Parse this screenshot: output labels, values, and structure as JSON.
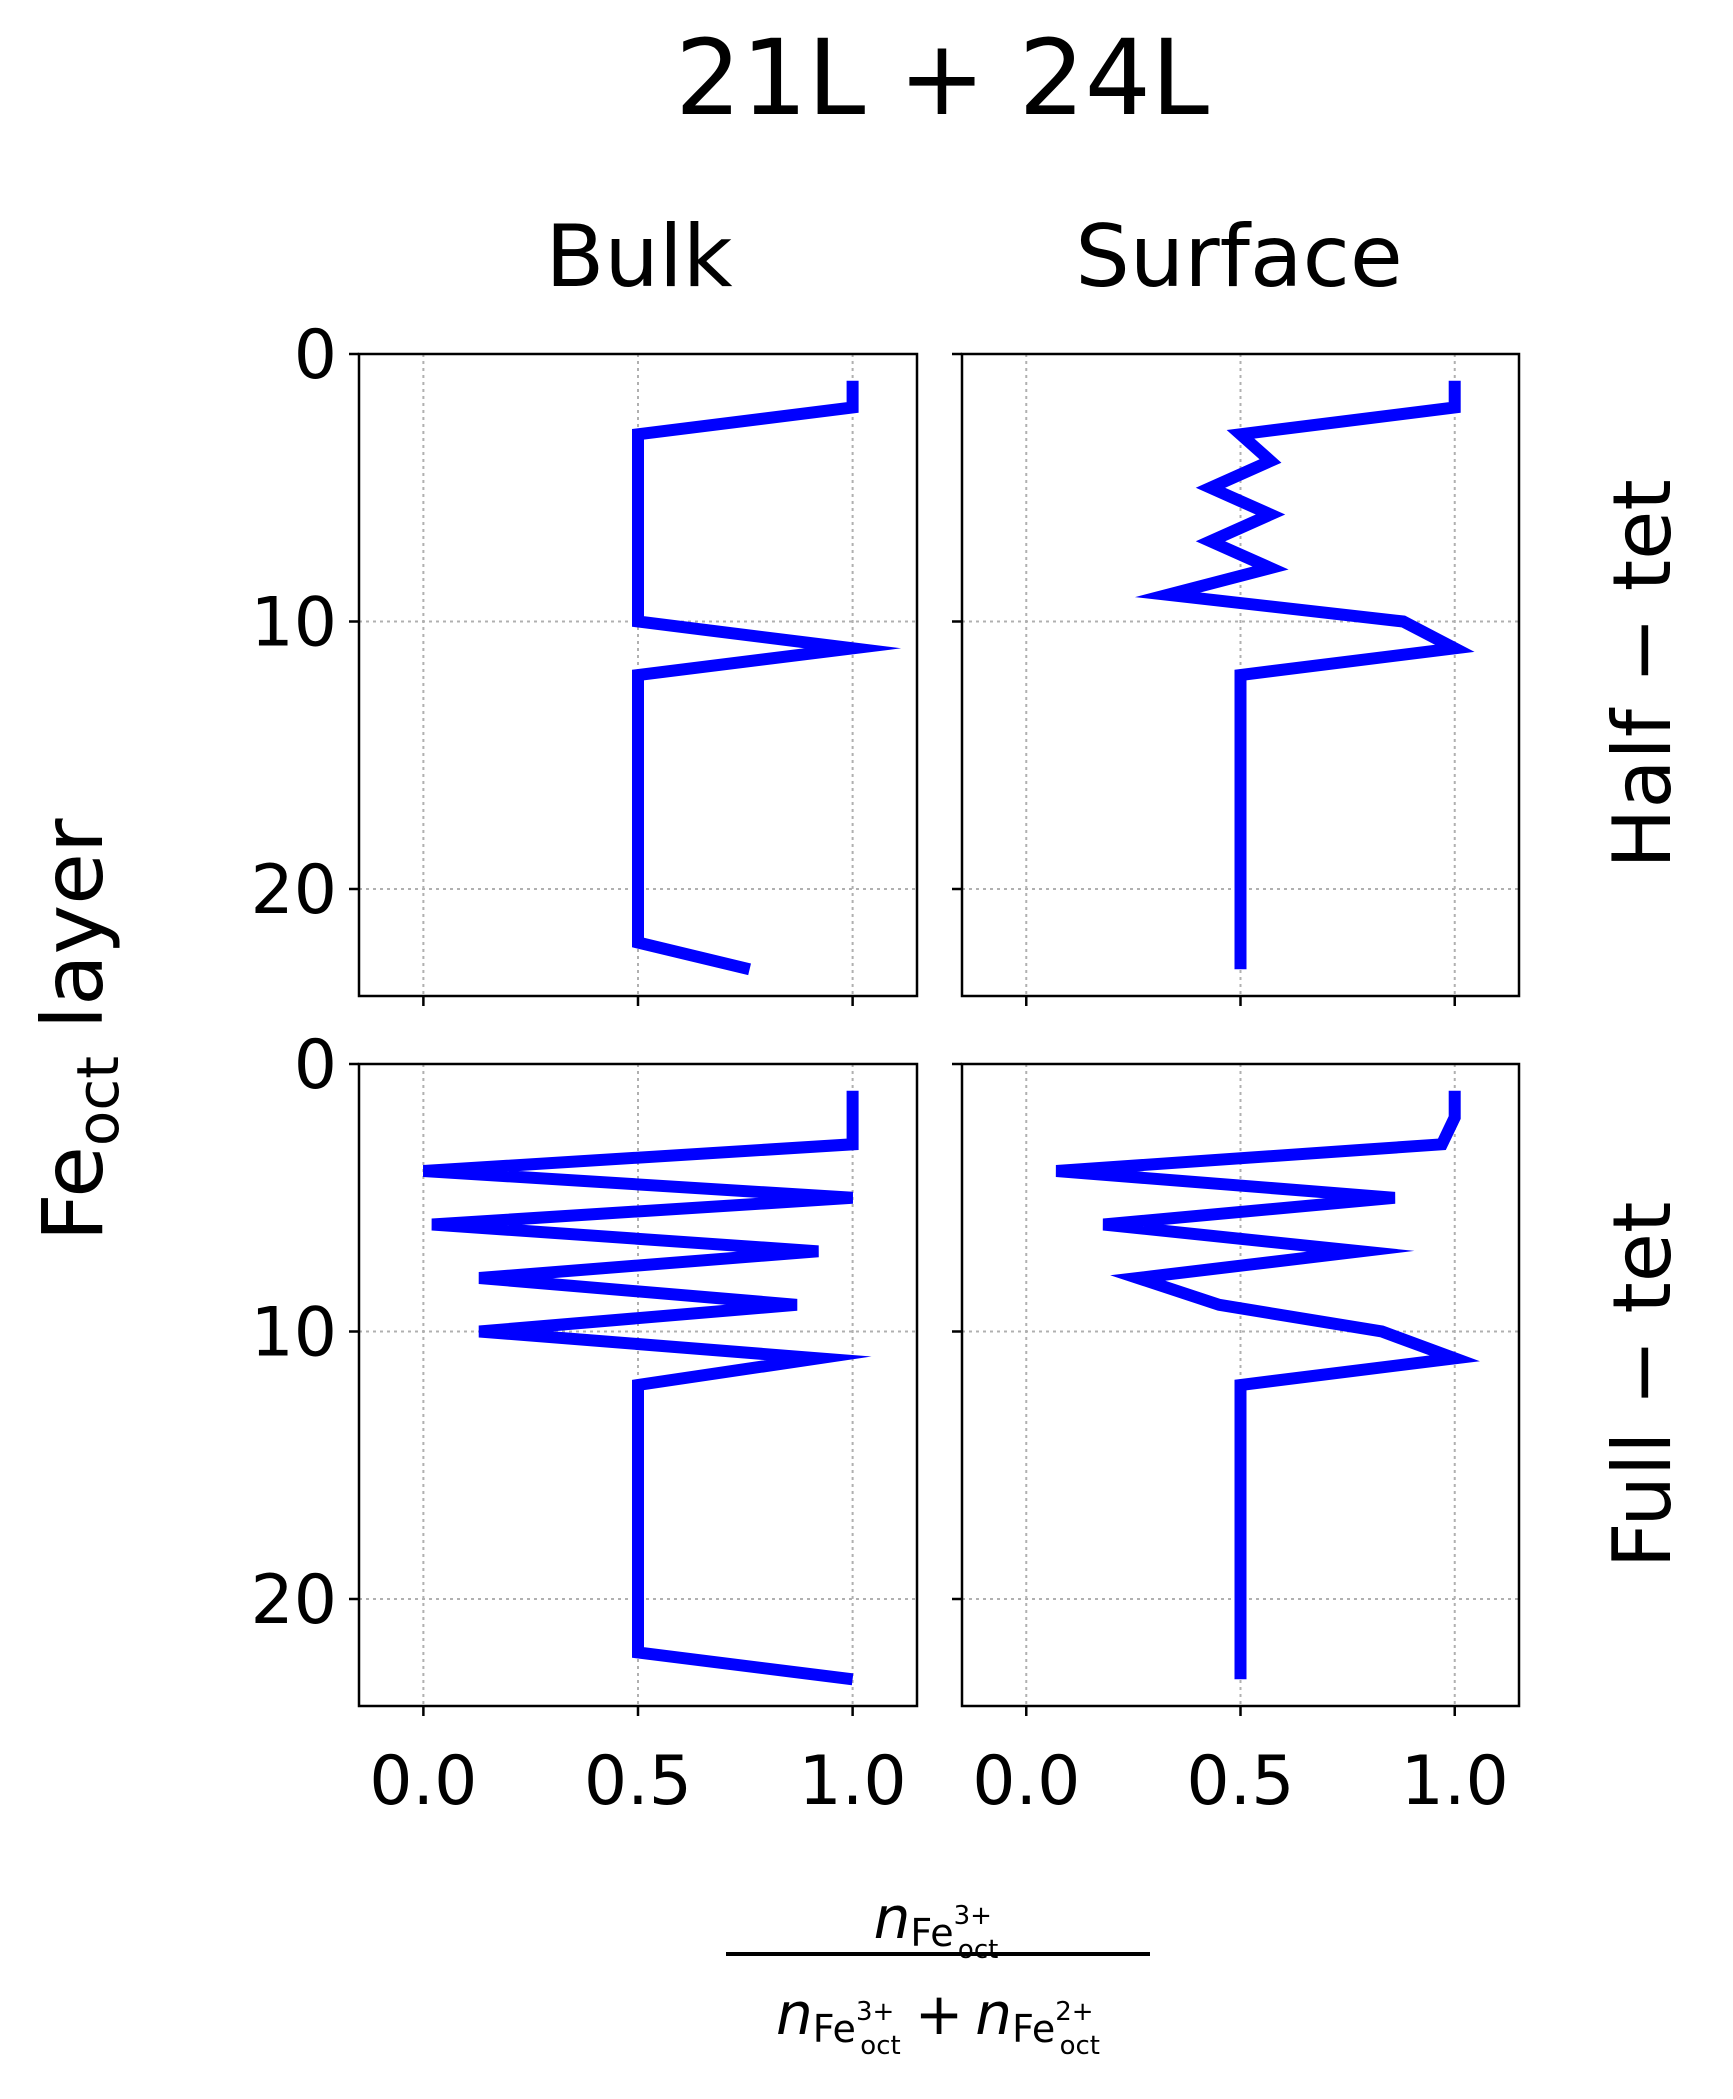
{
  "figure": {
    "title": "21L + 24L",
    "col_titles": [
      "Bulk",
      "Surface"
    ],
    "row_titles": [
      "Half − tet",
      "Full − tet"
    ],
    "ylabel_main": "Fe",
    "ylabel_sub": "oct",
    "ylabel_tail": " layer",
    "xlabel": {
      "n": "n",
      "fe": "Fe",
      "sup3": "3+",
      "sup2": "2+",
      "sub": "oct",
      "plus": "+"
    }
  },
  "colors": {
    "series": "#0000ff",
    "grid": "#b0b0b0",
    "axis": "#000000"
  },
  "chart_data": [
    {
      "type": "line",
      "panel": "Bulk / Half − tet",
      "xlim": [
        -0.15,
        1.15
      ],
      "ylim": [
        24,
        0
      ],
      "xticks": [
        "0.0",
        "0.5",
        "1.0"
      ],
      "yticks": [
        "0",
        "10",
        "20"
      ],
      "grid": true,
      "x": [
        1.0,
        1.0,
        0.5,
        0.5,
        0.5,
        0.5,
        0.5,
        0.5,
        0.5,
        0.5,
        1.0,
        0.5,
        0.5,
        0.5,
        0.5,
        0.5,
        0.5,
        0.5,
        0.5,
        0.5,
        0.5,
        0.5,
        0.76
      ],
      "y": [
        1,
        2,
        3,
        4,
        5,
        6,
        7,
        8,
        9,
        10,
        11,
        12,
        13,
        14,
        15,
        16,
        17,
        18,
        19,
        20,
        21,
        22,
        23
      ]
    },
    {
      "type": "line",
      "panel": "Surface / Half − tet",
      "xlim": [
        -0.15,
        1.15
      ],
      "ylim": [
        24,
        0
      ],
      "xticks": [
        "0.0",
        "0.5",
        "1.0"
      ],
      "yticks": [
        "0",
        "10",
        "20"
      ],
      "grid": true,
      "x": [
        1.0,
        1.0,
        0.5,
        0.57,
        0.43,
        0.57,
        0.43,
        0.57,
        0.33,
        0.88,
        1.0,
        0.5,
        0.5,
        0.5,
        0.5,
        0.5,
        0.5,
        0.5,
        0.5,
        0.5,
        0.5,
        0.5,
        0.5
      ],
      "y": [
        1,
        2,
        3,
        4,
        5,
        6,
        7,
        8,
        9,
        10,
        11,
        12,
        13,
        14,
        15,
        16,
        17,
        18,
        19,
        20,
        21,
        22,
        23
      ]
    },
    {
      "type": "line",
      "panel": "Bulk / Full − tet",
      "xlim": [
        -0.15,
        1.15
      ],
      "ylim": [
        24,
        0
      ],
      "xticks": [
        "0.0",
        "0.5",
        "1.0"
      ],
      "yticks": [
        "0",
        "10",
        "20"
      ],
      "grid": true,
      "x": [
        1.0,
        1.0,
        1.0,
        0.0,
        1.0,
        0.02,
        0.92,
        0.13,
        0.87,
        0.13,
        0.92,
        0.5,
        0.5,
        0.5,
        0.5,
        0.5,
        0.5,
        0.5,
        0.5,
        0.5,
        0.5,
        0.5,
        1.0
      ],
      "y": [
        1,
        2,
        3,
        4,
        5,
        6,
        7,
        8,
        9,
        10,
        11,
        12,
        13,
        14,
        15,
        16,
        17,
        18,
        19,
        20,
        21,
        22,
        23
      ]
    },
    {
      "type": "line",
      "panel": "Surface / Full − tet",
      "xlim": [
        -0.15,
        1.15
      ],
      "ylim": [
        24,
        0
      ],
      "xticks": [
        "0.0",
        "0.5",
        "1.0"
      ],
      "yticks": [
        "0",
        "10",
        "20"
      ],
      "grid": true,
      "x": [
        1.0,
        1.0,
        0.97,
        0.07,
        0.86,
        0.18,
        0.78,
        0.26,
        0.45,
        0.83,
        1.0,
        0.5,
        0.5,
        0.5,
        0.5,
        0.5,
        0.5,
        0.5,
        0.5,
        0.5,
        0.5,
        0.5,
        0.5
      ],
      "y": [
        1,
        2,
        3,
        4,
        5,
        6,
        7,
        8,
        9,
        10,
        11,
        12,
        13,
        14,
        15,
        16,
        17,
        18,
        19,
        20,
        21,
        22,
        23
      ]
    }
  ]
}
